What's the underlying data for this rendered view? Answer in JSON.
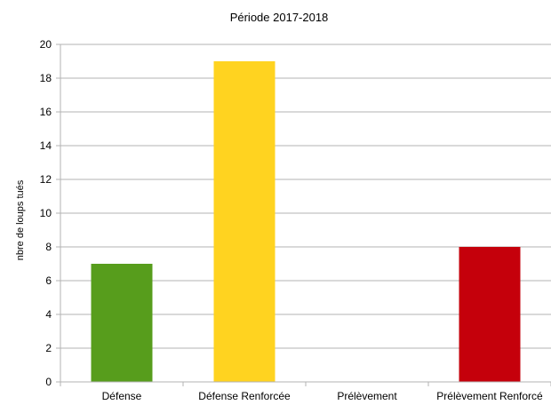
{
  "chart_data": {
    "type": "bar",
    "title": "Période 2017-2018",
    "xlabel": "",
    "ylabel": "nbre  de loups tués",
    "categories": [
      "Défense",
      "Défense Renforcée",
      "Prélèvement",
      "Prélèvement Renforcé"
    ],
    "values": [
      7,
      19,
      0,
      8
    ],
    "colors": [
      "#579d1c",
      "#ffd320",
      "#2a6099",
      "#c5000b"
    ],
    "ylim": [
      0,
      20
    ],
    "yticks": [
      0,
      2,
      4,
      6,
      8,
      10,
      12,
      14,
      16,
      18,
      20
    ],
    "grid": true,
    "legend": "none"
  }
}
